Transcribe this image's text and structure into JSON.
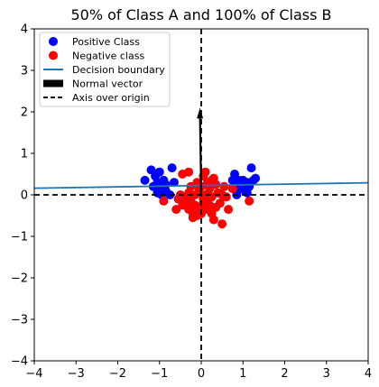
{
  "chart_data": {
    "type": "scatter",
    "title": "50% of Class A and 100% of Class B",
    "xlabel": "",
    "ylabel": "",
    "xlim": [
      -4,
      4
    ],
    "ylim": [
      -4,
      4
    ],
    "xticks": [
      -4,
      -3,
      -2,
      -1,
      0,
      1,
      2,
      3,
      4
    ],
    "yticks": [
      -4,
      -3,
      -2,
      -1,
      0,
      1,
      2,
      3,
      4
    ],
    "tick_labels": {
      "x": [
        "−4",
        "−3",
        "−2",
        "−1",
        "0",
        "1",
        "2",
        "3",
        "4"
      ],
      "y": [
        "−4",
        "−3",
        "−2",
        "−1",
        "0",
        "1",
        "2",
        "3",
        "4"
      ]
    },
    "grid": false,
    "legend_position": "top-left",
    "colors": {
      "positive": "#0000ff",
      "negative": "#ff0000",
      "boundary": "#1f77b4",
      "normal": "#000000",
      "axis": "#000000"
    },
    "legend": [
      {
        "key": "positive",
        "label": "Positive Class",
        "marker": "dot"
      },
      {
        "key": "negative",
        "label": "Negative class",
        "marker": "dot"
      },
      {
        "key": "boundary",
        "label": "Decision boundary",
        "marker": "line"
      },
      {
        "key": "normal",
        "label": "Normal vector",
        "marker": "bar"
      },
      {
        "key": "axis",
        "label": "Axis over origin",
        "marker": "dashed"
      }
    ],
    "positive": [
      [
        -1.2,
        0.6
      ],
      [
        -1.35,
        0.35
      ],
      [
        -1.1,
        0.45
      ],
      [
        -1.0,
        0.55
      ],
      [
        -1.05,
        0.3
      ],
      [
        -0.9,
        0.35
      ],
      [
        -0.95,
        0.15
      ],
      [
        -1.05,
        0.05
      ],
      [
        -0.85,
        0.1
      ],
      [
        -0.7,
        0.65
      ],
      [
        -0.65,
        0.3
      ],
      [
        -0.75,
        0.0
      ],
      [
        -0.95,
        0.0
      ],
      [
        -1.15,
        0.2
      ],
      [
        -0.85,
        0.25
      ],
      [
        0.8,
        0.5
      ],
      [
        0.9,
        0.35
      ],
      [
        1.0,
        0.35
      ],
      [
        1.1,
        0.3
      ],
      [
        1.2,
        0.65
      ],
      [
        1.25,
        0.35
      ],
      [
        0.95,
        0.15
      ],
      [
        1.05,
        0.1
      ],
      [
        1.15,
        0.2
      ],
      [
        0.85,
        0.0
      ],
      [
        0.75,
        0.35
      ],
      [
        1.1,
        0.05
      ],
      [
        1.3,
        0.4
      ],
      [
        0.9,
        0.2
      ],
      [
        1.0,
        0.25
      ]
    ],
    "negative": [
      [
        -0.45,
        0.5
      ],
      [
        -0.3,
        0.55
      ],
      [
        -0.1,
        0.3
      ],
      [
        0.05,
        0.45
      ],
      [
        0.1,
        0.55
      ],
      [
        0.25,
        0.35
      ],
      [
        0.3,
        0.4
      ],
      [
        0.35,
        0.25
      ],
      [
        0.2,
        0.15
      ],
      [
        0.15,
        0.3
      ],
      [
        0.0,
        0.2
      ],
      [
        -0.05,
        0.05
      ],
      [
        -0.15,
        0.0
      ],
      [
        -0.3,
        0.05
      ],
      [
        -0.4,
        -0.05
      ],
      [
        -0.5,
        0.0
      ],
      [
        -0.55,
        -0.1
      ],
      [
        -0.35,
        -0.2
      ],
      [
        -0.25,
        -0.15
      ],
      [
        -0.15,
        -0.25
      ],
      [
        -0.05,
        -0.3
      ],
      [
        0.05,
        -0.2
      ],
      [
        0.15,
        -0.1
      ],
      [
        0.25,
        -0.05
      ],
      [
        0.4,
        0.05
      ],
      [
        0.5,
        0.0
      ],
      [
        0.6,
        -0.05
      ],
      [
        0.55,
        0.2
      ],
      [
        0.45,
        -0.2
      ],
      [
        0.35,
        -0.3
      ],
      [
        0.25,
        -0.45
      ],
      [
        0.15,
        -0.35
      ],
      [
        0.0,
        -0.45
      ],
      [
        -0.1,
        -0.5
      ],
      [
        -0.2,
        -0.45
      ],
      [
        -0.3,
        -0.35
      ],
      [
        -0.45,
        -0.25
      ],
      [
        -0.6,
        -0.35
      ],
      [
        -0.9,
        -0.15
      ],
      [
        -0.2,
        -0.55
      ],
      [
        0.3,
        -0.6
      ],
      [
        0.5,
        -0.7
      ],
      [
        0.65,
        -0.35
      ],
      [
        0.75,
        0.15
      ],
      [
        1.15,
        -0.15
      ],
      [
        0.1,
        0.0
      ],
      [
        -0.05,
        0.15
      ],
      [
        0.2,
        -0.25
      ],
      [
        -0.25,
        0.2
      ],
      [
        0.05,
        -0.1
      ]
    ],
    "decision_boundary": {
      "x": [
        -4,
        4
      ],
      "y": [
        0.16,
        0.29
      ]
    },
    "normal_vector": {
      "x0": 0,
      "y0": 0,
      "x1": -0.03,
      "y1": 2.1
    },
    "axis_lines": {
      "vertical_x": 0,
      "horizontal_y": 0
    }
  }
}
